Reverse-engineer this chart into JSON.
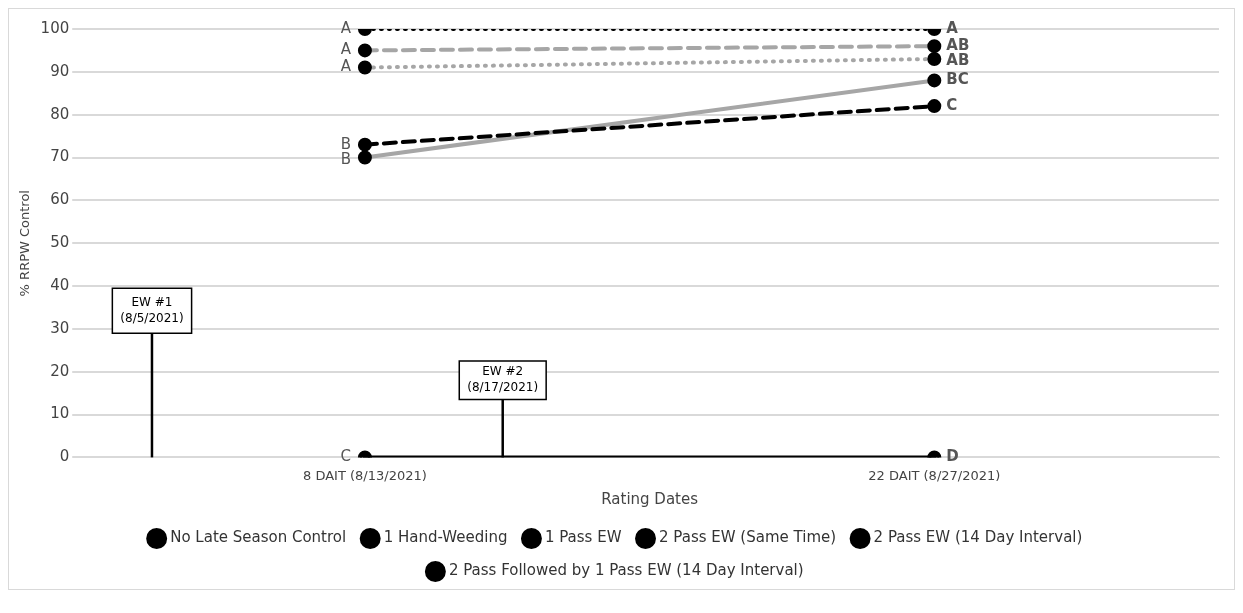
{
  "chart_data": {
    "type": "line",
    "xlabel": "Rating Dates",
    "ylabel": "% RRPW Control",
    "categories": [
      "8 DAIT (8/13/2021)",
      "22 DAIT (8/27/2021)"
    ],
    "ylim": [
      0,
      100
    ],
    "yticks": [
      0,
      10,
      20,
      30,
      40,
      50,
      60,
      70,
      80,
      90,
      100
    ],
    "grid": "y",
    "legend": "bottom",
    "marker": "circle",
    "series": [
      {
        "name": "No Late Season Control",
        "color": "#000000",
        "line_style": "solid",
        "values": [
          0,
          0
        ]
      },
      {
        "name": "1 Hand-Weeding",
        "color": "#000000",
        "line_style": "dotted",
        "values": [
          100,
          100
        ]
      },
      {
        "name": "1 Pass EW",
        "color": "#000000",
        "line_style": "dashed",
        "values": [
          73,
          82
        ]
      },
      {
        "name": "2 Pass EW (Same Time)",
        "color": "#a6a6a6",
        "line_style": "dotted",
        "values": [
          91,
          93
        ]
      },
      {
        "name": "2 Pass EW (14 Day Interval)",
        "color": "#a6a6a6",
        "line_style": "solid",
        "values": [
          70,
          88
        ]
      },
      {
        "name": "2 Pass Followed by 1 Pass EW (14 Day Interval)",
        "color": "#a6a6a6",
        "line_style": "dashed",
        "values": [
          95,
          96
        ]
      }
    ],
    "annotations": [
      {
        "text": "A",
        "x": "8 DAIT (8/13/2021)",
        "y": 100
      },
      {
        "text": "A",
        "x": "8 DAIT (8/13/2021)",
        "y": 95
      },
      {
        "text": "A",
        "x": "8 DAIT (8/13/2021)",
        "y": 91
      },
      {
        "text": "B",
        "x": "8 DAIT (8/13/2021)",
        "y": 73
      },
      {
        "text": "B",
        "x": "8 DAIT (8/13/2021)",
        "y": 70
      },
      {
        "text": "C",
        "x": "8 DAIT (8/13/2021)",
        "y": 0
      },
      {
        "text": "A",
        "x": "22 DAIT (8/27/2021)",
        "y": 100
      },
      {
        "text": "AB",
        "x": "22 DAIT (8/27/2021)",
        "y": 96
      },
      {
        "text": "AB",
        "x": "22 DAIT (8/27/2021)",
        "y": 93
      },
      {
        "text": "BC",
        "x": "22 DAIT (8/27/2021)",
        "y": 88
      },
      {
        "text": "C",
        "x": "22 DAIT (8/27/2021)",
        "y": 82
      },
      {
        "text": "D",
        "x": "22 DAIT (8/27/2021)",
        "y": 0
      },
      "EW #1\n(8/5/2021)",
      {
        "text": "EW #2\n(8/17/2021)",
        "y": 0
      }
    ]
  }
}
